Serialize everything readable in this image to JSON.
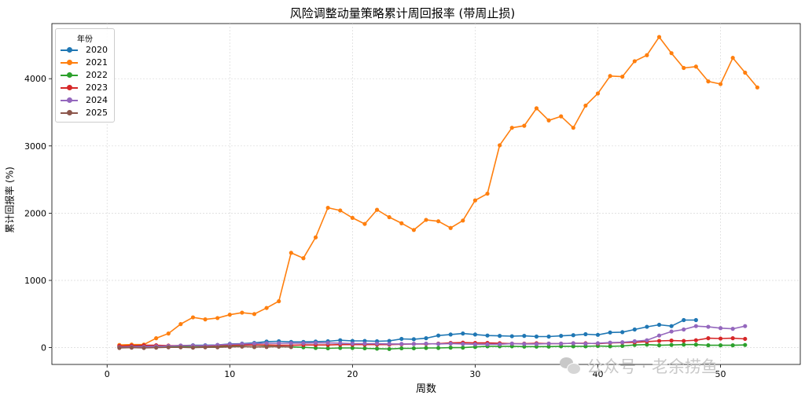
{
  "chart_data": {
    "type": "line",
    "title": "风险调整动量策略累计周回报率 (带周止损)",
    "xlabel": "周数",
    "ylabel": "累计回报率 (%)",
    "xlim": [
      -4.5,
      56.5
    ],
    "ylim": [
      -250,
      4820
    ],
    "xticks": [
      0,
      10,
      20,
      30,
      40,
      50
    ],
    "yticks": [
      0,
      1000,
      2000,
      3000,
      4000
    ],
    "grid": true,
    "legend": {
      "title": "年份",
      "placement": "top-left"
    },
    "series": [
      {
        "name": "2020",
        "color": "#1f77b4",
        "x": [
          1,
          2,
          3,
          4,
          5,
          6,
          7,
          8,
          9,
          10,
          11,
          12,
          13,
          14,
          15,
          16,
          17,
          18,
          19,
          20,
          21,
          22,
          23,
          24,
          25,
          26,
          27,
          28,
          29,
          30,
          31,
          32,
          33,
          34,
          35,
          36,
          37,
          38,
          39,
          40,
          41,
          42,
          43,
          44,
          45,
          46,
          47,
          48
        ],
        "y": [
          10,
          15,
          20,
          25,
          25,
          30,
          35,
          35,
          40,
          55,
          60,
          70,
          90,
          95,
          85,
          85,
          90,
          95,
          110,
          100,
          100,
          95,
          100,
          130,
          125,
          140,
          180,
          195,
          210,
          195,
          180,
          175,
          170,
          175,
          165,
          165,
          175,
          185,
          200,
          190,
          225,
          230,
          270,
          310,
          340,
          320,
          410,
          410
        ]
      },
      {
        "name": "2021",
        "color": "#ff7f0e",
        "x": [
          1,
          2,
          3,
          4,
          5,
          6,
          7,
          8,
          9,
          10,
          11,
          12,
          13,
          14,
          15,
          16,
          17,
          18,
          19,
          20,
          21,
          22,
          23,
          24,
          25,
          26,
          27,
          28,
          29,
          30,
          31,
          32,
          33,
          34,
          35,
          36,
          37,
          38,
          39,
          40,
          41,
          42,
          43,
          44,
          45,
          46,
          47,
          48,
          49,
          50,
          51,
          52,
          53
        ],
        "y": [
          40,
          45,
          45,
          140,
          210,
          350,
          450,
          420,
          440,
          490,
          520,
          500,
          590,
          690,
          1410,
          1330,
          1640,
          2080,
          2040,
          1930,
          1840,
          2050,
          1940,
          1850,
          1750,
          1900,
          1880,
          1780,
          1890,
          2190,
          2290,
          3010,
          3270,
          3300,
          3560,
          3380,
          3440,
          3270,
          3600,
          3780,
          4040,
          4030,
          4260,
          4350,
          4620,
          4380,
          4160,
          4180,
          3960,
          3920,
          4310,
          4090,
          3870
        ]
      },
      {
        "name": "2022",
        "color": "#2ca02c",
        "x": [
          1,
          2,
          3,
          4,
          5,
          6,
          7,
          8,
          9,
          10,
          11,
          12,
          13,
          14,
          15,
          16,
          17,
          18,
          19,
          20,
          21,
          22,
          23,
          24,
          25,
          26,
          27,
          28,
          29,
          30,
          31,
          32,
          33,
          34,
          35,
          36,
          37,
          38,
          39,
          40,
          41,
          42,
          43,
          44,
          45,
          46,
          47,
          48,
          49,
          50,
          51,
          52
        ],
        "y": [
          15,
          10,
          10,
          5,
          10,
          15,
          20,
          20,
          15,
          20,
          20,
          10,
          20,
          15,
          10,
          5,
          -5,
          -10,
          -5,
          -5,
          -10,
          -15,
          -20,
          -10,
          -10,
          -5,
          -5,
          0,
          0,
          10,
          20,
          20,
          20,
          15,
          15,
          15,
          20,
          20,
          20,
          25,
          20,
          25,
          40,
          45,
          35,
          40,
          45,
          45,
          35,
          35,
          35,
          40
        ]
      },
      {
        "name": "2023",
        "color": "#d62728",
        "x": [
          1,
          2,
          3,
          4,
          5,
          6,
          7,
          8,
          9,
          10,
          11,
          12,
          13,
          14,
          15,
          16,
          17,
          18,
          19,
          20,
          21,
          22,
          23,
          24,
          25,
          26,
          27,
          28,
          29,
          30,
          31,
          32,
          33,
          34,
          35,
          36,
          37,
          38,
          39,
          40,
          41,
          42,
          43,
          44,
          45,
          46,
          47,
          48,
          49,
          50,
          51,
          52
        ],
        "y": [
          25,
          30,
          35,
          35,
          30,
          30,
          30,
          25,
          30,
          35,
          40,
          40,
          40,
          35,
          35,
          40,
          40,
          40,
          45,
          45,
          45,
          45,
          45,
          50,
          55,
          55,
          60,
          70,
          75,
          70,
          70,
          65,
          60,
          60,
          65,
          60,
          60,
          65,
          65,
          60,
          70,
          75,
          80,
          90,
          100,
          105,
          100,
          110,
          140,
          135,
          140,
          130
        ]
      },
      {
        "name": "2024",
        "color": "#9467bd",
        "x": [
          1,
          2,
          3,
          4,
          5,
          6,
          7,
          8,
          9,
          10,
          11,
          12,
          13,
          14,
          15,
          16,
          17,
          18,
          19,
          20,
          21,
          22,
          23,
          24,
          25,
          26,
          27,
          28,
          29,
          30,
          31,
          32,
          33,
          34,
          35,
          36,
          37,
          38,
          39,
          40,
          41,
          42,
          43,
          44,
          45,
          46,
          47,
          48,
          49,
          50,
          51,
          52
        ],
        "y": [
          5,
          10,
          10,
          20,
          25,
          30,
          30,
          30,
          40,
          50,
          55,
          60,
          65,
          65,
          65,
          65,
          70,
          70,
          65,
          60,
          60,
          60,
          55,
          55,
          55,
          60,
          55,
          60,
          55,
          50,
          50,
          50,
          60,
          55,
          55,
          60,
          60,
          65,
          60,
          65,
          75,
          80,
          95,
          110,
          180,
          240,
          270,
          320,
          310,
          290,
          280,
          320
        ]
      },
      {
        "name": "2025",
        "color": "#8c564b",
        "x": [
          1,
          2,
          3,
          4,
          5,
          6,
          7,
          8,
          9,
          10,
          11,
          12,
          13,
          14,
          15
        ],
        "y": [
          -5,
          0,
          -5,
          0,
          5,
          5,
          0,
          5,
          5,
          10,
          15,
          10,
          10,
          15,
          10
        ]
      }
    ]
  },
  "watermark": {
    "text": "公众号 · 老余捞鱼",
    "icon": "wechat-icon"
  }
}
